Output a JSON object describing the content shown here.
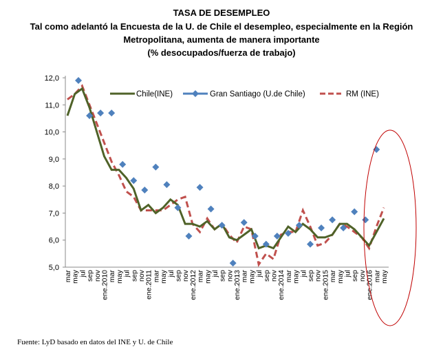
{
  "titles": [
    "TASA DE DESEMPLEO",
    "Tal como adelantó la Encuesta de la U. de Chile  el desempleo, especialmente en la Región",
    "Metropolitana, aumenta de manera importante",
    "(% desocupados/fuerza de trabajo)"
  ],
  "footer": "Fuente: LyD basado en datos del INE y U. de Chile",
  "chart_data": {
    "type": "line",
    "title": "TASA DE DESEMPLEO",
    "ylim": [
      5.0,
      12.0
    ],
    "yticks": [
      "5,0",
      "6,0",
      "7,0",
      "8,0",
      "9,0",
      "10,0",
      "11,0",
      "12,0"
    ],
    "xticks": [
      "mar",
      "may",
      "jul",
      "sep",
      "nov",
      "ene.2010",
      "mar",
      "may",
      "jul",
      "sep",
      "nov",
      "ene.2011",
      "mar",
      "may",
      "jul",
      "sep",
      "nov",
      "ene.2012",
      "mar",
      "may",
      "jul",
      "sep",
      "nov",
      "ene.2013",
      "mar",
      "may",
      "jul",
      "sep",
      "nov",
      "ene.2014",
      "mar",
      "may",
      "jul",
      "sep",
      "nov",
      "ene.2015",
      "mar",
      "may",
      "jul",
      "sep",
      "nov",
      "ene.2016",
      "mar",
      "may"
    ],
    "grid": false,
    "legend_position": "top",
    "series": [
      {
        "name": "Chile(INE)",
        "style": "solid",
        "color": "#4f6228",
        "values": [
          10.6,
          11.4,
          11.6,
          10.9,
          10.0,
          9.1,
          8.6,
          8.6,
          8.3,
          7.9,
          7.1,
          7.3,
          7.0,
          7.2,
          7.5,
          7.3,
          6.6,
          6.6,
          6.5,
          6.7,
          6.4,
          6.6,
          6.1,
          6.0,
          6.2,
          6.4,
          5.7,
          5.8,
          5.7,
          6.1,
          6.5,
          6.3,
          6.6,
          6.4,
          6.1,
          6.1,
          6.2,
          6.6,
          6.6,
          6.4,
          6.1,
          5.8,
          6.3,
          6.8
        ]
      },
      {
        "name": "Gran Santiago (U.de Chile)",
        "style": "markers",
        "color": "#4f81bd",
        "x": [
          "jun 2009",
          "sep 2009",
          "dic 2009",
          "mar 2010",
          "jun 2010",
          "sep 2010",
          "dic 2010",
          "mar 2011",
          "jun 2011",
          "sep 2011",
          "dic 2011",
          "mar 2012",
          "jun 2012",
          "sep 2012",
          "dic 2012",
          "mar 2013",
          "jun 2013",
          "sep 2013",
          "dic 2013",
          "mar 2014",
          "jun 2014",
          "sep 2014",
          "dic 2014",
          "mar 2015",
          "jun 2015",
          "sep 2015",
          "dic 2015",
          "mar 2016"
        ],
        "values": [
          11.9,
          10.6,
          10.7,
          10.7,
          8.8,
          8.2,
          7.85,
          8.7,
          8.05,
          7.2,
          6.15,
          7.95,
          7.15,
          6.55,
          5.15,
          6.65,
          6.15,
          5.85,
          6.15,
          6.25,
          6.55,
          5.85,
          6.45,
          6.75,
          6.45,
          7.05,
          6.75,
          9.35
        ]
      },
      {
        "name": "RM (INE)",
        "style": "dashed",
        "color": "#c0504d",
        "values": [
          11.2,
          11.4,
          11.7,
          11.0,
          10.3,
          9.6,
          8.9,
          8.4,
          7.8,
          7.6,
          7.1,
          7.1,
          7.1,
          7.1,
          7.3,
          7.5,
          7.6,
          6.6,
          6.3,
          6.8,
          6.4,
          6.6,
          6.2,
          5.9,
          6.5,
          6.4,
          5.1,
          5.5,
          5.3,
          6.2,
          6.3,
          6.3,
          7.1,
          6.5,
          5.8,
          5.9,
          6.2,
          6.6,
          6.5,
          6.3,
          6.1,
          5.7,
          6.5,
          7.2
        ]
      }
    ],
    "annotation": "red ellipse highlighting latest months (sep 2015 – may 2016)"
  }
}
